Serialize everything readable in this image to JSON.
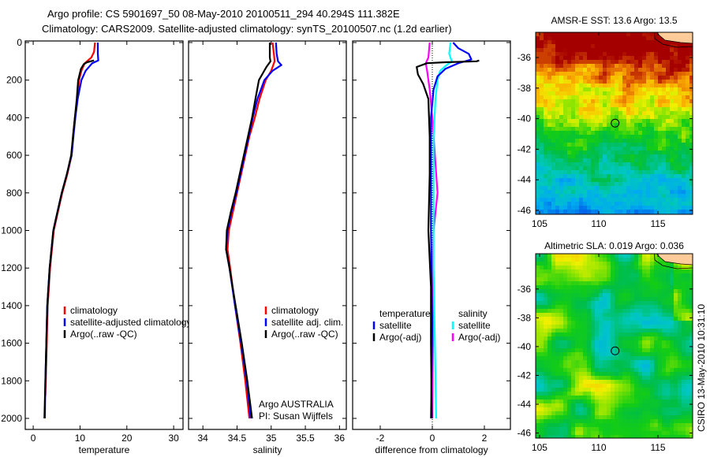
{
  "title": {
    "line1": "Argo profile: CS 5901697_50 08-May-2010 20100511_294 40.294S 111.382E",
    "line2": "Climatology: CARS2009. Satellite-adjusted climatology: synTS_20100507.nc (1.2d earlier)"
  },
  "footer_stamp": "CSIRO 13-May-2010 10:31:10",
  "credit": {
    "line1": "Argo AUSTRALIA",
    "line2": "PI: Susan Wijffels"
  },
  "chart_data": [
    {
      "type": "line",
      "id": "temperature",
      "xlabel": "temperature",
      "ylabel": "",
      "xlim": [
        -1.7,
        32
      ],
      "ylim": [
        2000,
        0
      ],
      "xticks": [
        0,
        10,
        20,
        30
      ],
      "yticks": [
        0,
        200,
        400,
        600,
        800,
        1000,
        1200,
        1400,
        1600,
        1800,
        2000
      ],
      "legend": [
        "climatology",
        "satellite-adjusted climatology",
        "Argo(..raw -QC)"
      ],
      "legend_position": "lower-right",
      "series": [
        {
          "name": "climatology",
          "color": "#ff0000",
          "depth": [
            0,
            50,
            80,
            110,
            150,
            200,
            300,
            400,
            500,
            600,
            700,
            800,
            900,
            1000,
            1200,
            1400,
            1600,
            1800,
            1880
          ],
          "values": [
            13.2,
            13.0,
            12.4,
            11.0,
            10.3,
            9.8,
            9.4,
            8.9,
            8.5,
            8.2,
            7.3,
            6.2,
            5.3,
            4.4,
            3.6,
            3.1,
            2.9,
            2.7,
            2.6
          ]
        },
        {
          "name": "satellite-adjusted climatology",
          "color": "#0000ff",
          "depth": [
            0,
            60,
            95,
            110,
            150,
            200,
            300,
            400,
            500,
            600,
            700,
            800,
            900,
            1000,
            1200,
            1400,
            1600,
            1800,
            2000
          ],
          "values": [
            13.8,
            13.8,
            13.9,
            12.6,
            11.2,
            10.3,
            9.5,
            9.0,
            8.6,
            8.2,
            7.2,
            6.1,
            5.2,
            4.3,
            3.5,
            3.0,
            2.8,
            2.6,
            2.5
          ]
        },
        {
          "name": "Argo(..raw -QC)",
          "color": "#000000",
          "depth": [
            95,
            105,
            115,
            140,
            200,
            300,
            400,
            500,
            600,
            700,
            800,
            900,
            1000,
            1200,
            1400,
            1600,
            1800,
            2000
          ],
          "values": [
            13.0,
            11.5,
            10.8,
            10.2,
            9.6,
            9.3,
            8.9,
            8.5,
            8.1,
            7.2,
            6.1,
            5.2,
            4.3,
            3.5,
            3.0,
            2.8,
            2.6,
            2.4
          ]
        }
      ]
    },
    {
      "type": "line",
      "id": "salinity",
      "xlabel": "salinity",
      "xlim": [
        33.79,
        36.1
      ],
      "ylim": [
        2000,
        0
      ],
      "xticks": [
        34,
        34.5,
        35,
        35.5,
        36
      ],
      "legend": [
        "climatology",
        "satellite adj. clim.",
        "Argo(..raw -QC)"
      ],
      "legend_position": "lower-right",
      "series": [
        {
          "name": "climatology",
          "color": "#ff0000",
          "depth": [
            0,
            60,
            100,
            150,
            200,
            300,
            400,
            500,
            600,
            700,
            800,
            900,
            1000,
            1100,
            1200,
            1400,
            1600,
            1800,
            2000
          ],
          "values": [
            35.02,
            35.04,
            35.05,
            35.0,
            34.92,
            34.83,
            34.76,
            34.68,
            34.62,
            34.56,
            34.5,
            34.44,
            34.38,
            34.36,
            34.4,
            34.47,
            34.55,
            34.62,
            34.68
          ]
        },
        {
          "name": "satellite adj. clim.",
          "color": "#0000ff",
          "depth": [
            0,
            60,
            100,
            120,
            150,
            200,
            300,
            400,
            500,
            600,
            700,
            800,
            900,
            1000,
            1100,
            1200,
            1400,
            1600,
            1800,
            2000
          ],
          "values": [
            35.07,
            35.08,
            35.1,
            35.15,
            35.02,
            34.9,
            34.8,
            34.73,
            34.67,
            34.61,
            34.55,
            34.49,
            34.42,
            34.36,
            34.34,
            34.39,
            34.47,
            34.56,
            34.64,
            34.7
          ]
        },
        {
          "name": "Argo(..raw -QC)",
          "color": "#000000",
          "depth": [
            0,
            80,
            100,
            130,
            200,
            300,
            400,
            500,
            600,
            700,
            800,
            900,
            1000,
            1100,
            1200,
            1400,
            1600,
            1800,
            2000
          ],
          "values": [
            34.98,
            34.98,
            34.99,
            34.93,
            34.82,
            34.77,
            34.72,
            34.66,
            34.6,
            34.54,
            34.48,
            34.41,
            34.35,
            34.34,
            34.39,
            34.48,
            34.57,
            34.65,
            34.72
          ]
        }
      ]
    },
    {
      "type": "line",
      "id": "difference",
      "xlabel": "difference from climatology",
      "xlim": [
        -3.06,
        3.0
      ],
      "ylim": [
        2000,
        0
      ],
      "xticks": [
        -2,
        0,
        2
      ],
      "zero_line": true,
      "legend_headers": [
        "temperature",
        "salinity"
      ],
      "legend": [
        "satellite",
        "Argo(-adj)",
        "satellite",
        "Argo(-adj)"
      ],
      "series": [
        {
          "name": "temperature satellite",
          "color": "#0000ff",
          "depth": [
            0,
            30,
            60,
            90,
            110,
            140,
            180,
            250,
            400,
            700,
            1000,
            1500,
            2000
          ],
          "values": [
            0.8,
            1.0,
            1.4,
            1.5,
            1.0,
            0.5,
            0.2,
            0.05,
            -0.05,
            -0.05,
            -0.05,
            0.0,
            -0.05
          ]
        },
        {
          "name": "temperature Argo(-adj)",
          "color": "#000000",
          "depth": [
            95,
            100,
            105,
            110,
            130,
            170,
            220,
            300,
            500,
            700,
            1000,
            1300,
            1600,
            2000
          ],
          "values": [
            1.8,
            1.7,
            0.5,
            -0.2,
            -0.6,
            -0.55,
            -0.35,
            -0.15,
            -0.1,
            -0.1,
            -0.15,
            -0.05,
            -0.05,
            -0.02
          ]
        },
        {
          "name": "salinity satellite",
          "color": "#00ffff",
          "depth": [
            0,
            60,
            100,
            120,
            150,
            200,
            300,
            500,
            800,
            1200,
            1600,
            2000
          ],
          "values": [
            0.7,
            0.65,
            0.75,
            0.55,
            0.3,
            0.2,
            0.12,
            0.05,
            0.05,
            0.05,
            0.1,
            0.15
          ]
        },
        {
          "name": "salinity Argo(-adj)",
          "color": "#ff00ff",
          "depth": [
            0,
            80,
            110,
            150,
            250,
            400,
            600,
            800,
            1000,
            1300,
            1600,
            2000
          ],
          "values": [
            -0.1,
            -0.15,
            -0.25,
            -0.2,
            -0.1,
            0.0,
            0.1,
            0.2,
            0.05,
            0.0,
            0.02,
            0.0
          ]
        }
      ]
    },
    {
      "type": "heatmap",
      "id": "sst-map",
      "title": "AMSR-E SST: 13.6 Argo: 13.5",
      "xlim": [
        104.67,
        117.93
      ],
      "ylim": [
        -46.26,
        -34.35
      ],
      "xticks": [
        105,
        110,
        115
      ],
      "yticks": [
        -36,
        -38,
        -40,
        -42,
        -44,
        -46
      ],
      "marker": {
        "lon": 111.382,
        "lat": -40.294
      }
    },
    {
      "type": "heatmap",
      "id": "sla-map",
      "title": "Altimetric SLA: 0.019 Argo: 0.036",
      "xlim": [
        104.67,
        117.93
      ],
      "ylim": [
        -46.35,
        -33.55
      ],
      "xticks": [
        105,
        110,
        115
      ],
      "yticks": [
        -36,
        -38,
        -40,
        -42,
        -44,
        -46
      ],
      "marker": {
        "lon": 111.382,
        "lat": -40.294
      }
    }
  ]
}
